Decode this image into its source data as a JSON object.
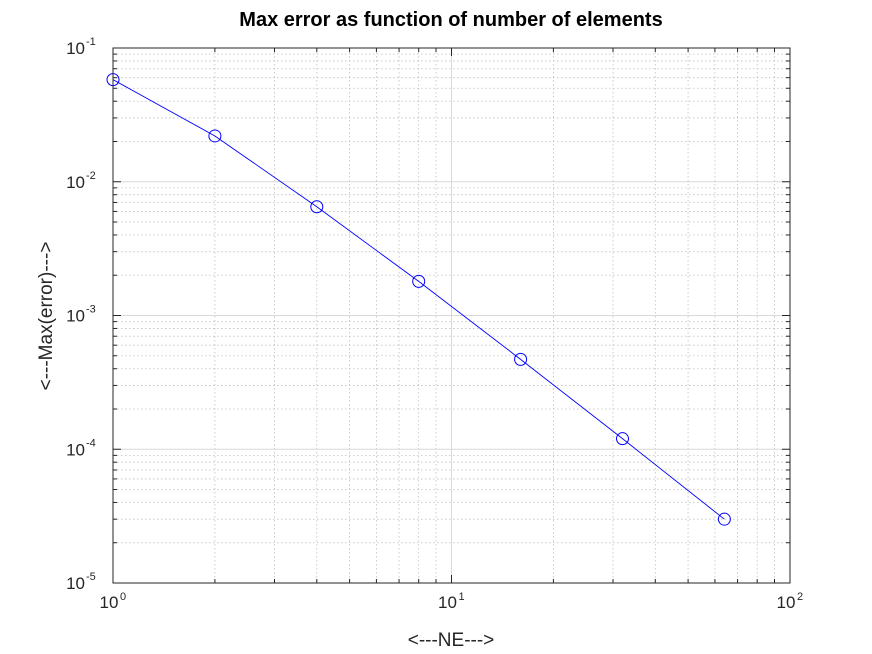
{
  "chart_data": {
    "type": "line",
    "title": "Max error as function of number of elements",
    "xlabel": "<---NE--->",
    "ylabel": "<---Max(error)--->",
    "xscale": "log",
    "yscale": "log",
    "xlim": [
      1,
      100
    ],
    "ylim": [
      1e-05,
      0.1
    ],
    "grid": true,
    "minor_grid": true,
    "x_ticks": [
      {
        "base": "10",
        "exp": "0",
        "value": 1
      },
      {
        "base": "10",
        "exp": "1",
        "value": 10
      },
      {
        "base": "10",
        "exp": "2",
        "value": 100
      }
    ],
    "y_ticks": [
      {
        "base": "10",
        "exp": "-5",
        "value": 1e-05
      },
      {
        "base": "10",
        "exp": "-4",
        "value": 0.0001
      },
      {
        "base": "10",
        "exp": "-3",
        "value": 0.001
      },
      {
        "base": "10",
        "exp": "-2",
        "value": 0.01
      },
      {
        "base": "10",
        "exp": "-1",
        "value": 0.1
      }
    ],
    "series": [
      {
        "color": "#0000ff",
        "marker": "circle-open",
        "x": [
          1,
          2,
          4,
          8,
          16,
          32,
          64
        ],
        "y": [
          0.058,
          0.022,
          0.0065,
          0.0018,
          0.00047,
          0.00012,
          3e-05
        ]
      }
    ]
  }
}
